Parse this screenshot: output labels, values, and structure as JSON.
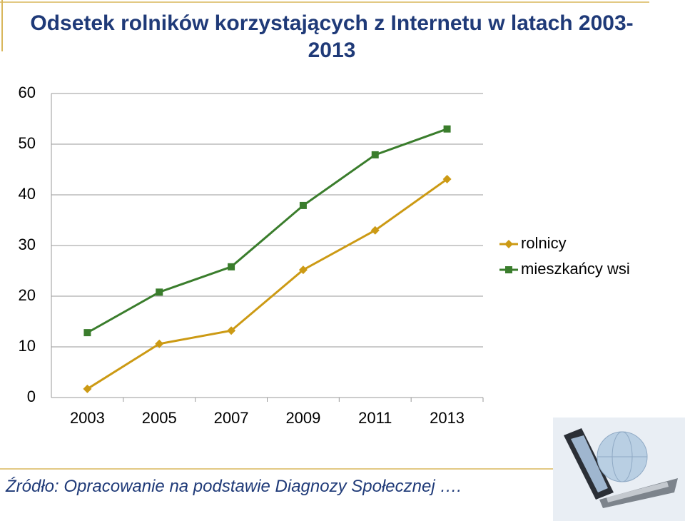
{
  "chart_data": {
    "type": "line",
    "title": "Odsetek rolników korzystających z Internetu  w latach 2003-2013",
    "categories": [
      "2003",
      "2005",
      "2007",
      "2009",
      "2011",
      "2013"
    ],
    "series": [
      {
        "name": "rolnicy",
        "color": "#cc9a14",
        "marker": "diamond",
        "values": [
          1.7,
          10.6,
          13.2,
          25.2,
          33.0,
          43.1
        ]
      },
      {
        "name": "mieszkańcy wsi",
        "color": "#3a7d2c",
        "marker": "square",
        "values": [
          12.8,
          20.8,
          25.8,
          37.9,
          47.9,
          53.0
        ]
      }
    ],
    "ylim": [
      0,
      60
    ],
    "yticks": [
      0,
      10,
      20,
      30,
      40,
      50,
      60
    ],
    "grid": true,
    "legend": "right"
  },
  "source": "Źródło: Opracowanie na podstawie Diagnozy Społecznej …."
}
